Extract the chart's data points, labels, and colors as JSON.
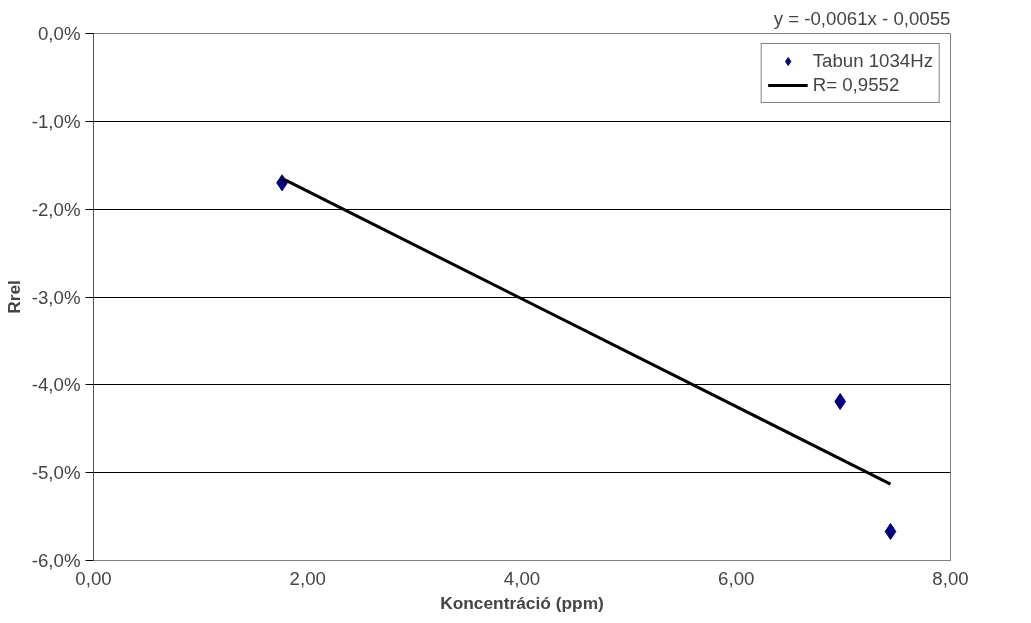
{
  "chart_data": {
    "type": "scatter",
    "xlabel": "Koncentráció (ppm)",
    "ylabel": "Rrel",
    "annotations": [
      "y = -0,0061x - 0,0055"
    ],
    "series": [
      {
        "name": "Tabun 1034Hz",
        "color": "#000080",
        "marker": "diamond",
        "x": [
          1.76,
          6.97,
          7.44
        ],
        "values": [
          -1.7,
          -4.19,
          -5.67
        ]
      },
      {
        "name": "R= 0,9552",
        "type": "line",
        "color": "#000000",
        "line_style": "solid",
        "x": [
          1.76,
          7.44
        ],
        "values": [
          -1.65,
          -5.13
        ]
      }
    ],
    "xlim": [
      0,
      8
    ],
    "xticks": [
      {
        "value": 0,
        "label": "0,00"
      },
      {
        "value": 2,
        "label": "2,00"
      },
      {
        "value": 4,
        "label": "4,00"
      },
      {
        "value": 6,
        "label": "6,00"
      },
      {
        "value": 8,
        "label": "8,00"
      }
    ],
    "ylim": [
      -6,
      0
    ],
    "yticks": [
      {
        "value": -6,
        "label": "-6,0%"
      },
      {
        "value": -5,
        "label": "-5,0%"
      },
      {
        "value": -4,
        "label": "-4,0%"
      },
      {
        "value": -3,
        "label": "-3,0%"
      },
      {
        "value": -2,
        "label": "-2,0%"
      },
      {
        "value": -1,
        "label": "-1,0%"
      },
      {
        "value": 0,
        "label": "0,0%"
      }
    ],
    "grid": "y",
    "legend": "top right"
  }
}
